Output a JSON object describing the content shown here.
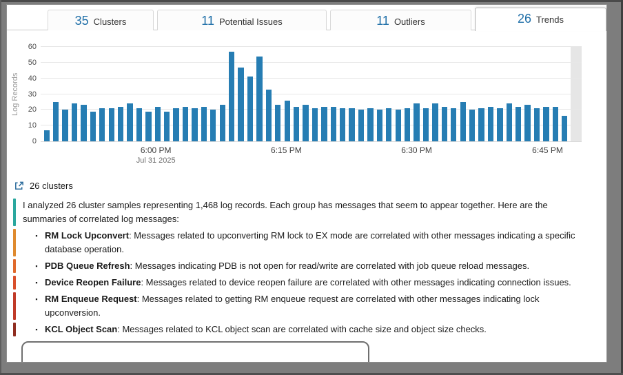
{
  "colors": {
    "accent_blue": "#1f6fa8",
    "bar_blue": "#267db3"
  },
  "tabs": [
    {
      "count": "35",
      "label": "Clusters",
      "active": false
    },
    {
      "count": "11",
      "label": "Potential Issues",
      "active": false
    },
    {
      "count": "11",
      "label": "Outliers",
      "active": false
    },
    {
      "count": "26",
      "label": "Trends",
      "active": true
    }
  ],
  "chart_data": {
    "type": "bar",
    "title": "",
    "xlabel": "",
    "ylabel": "Log Records",
    "ylim": [
      0,
      60
    ],
    "y_ticks": [
      0,
      10,
      20,
      30,
      40,
      50,
      60
    ],
    "grid": true,
    "x_ticks": [
      {
        "label": "6:00 PM",
        "sublabel": "Jul 31 2025",
        "pct": 21.3
      },
      {
        "label": "6:15 PM",
        "sublabel": "",
        "pct": 45.4
      },
      {
        "label": "6:30 PM",
        "sublabel": "",
        "pct": 69.5
      },
      {
        "label": "6:45 PM",
        "sublabel": "",
        "pct": 93.7
      }
    ],
    "values": [
      7,
      25,
      20,
      24,
      23,
      19,
      21,
      21,
      22,
      24,
      21,
      19,
      22,
      19,
      21,
      22,
      21,
      22,
      20,
      23,
      57,
      47,
      41,
      54,
      33,
      23,
      26,
      22,
      23,
      21,
      22,
      22,
      21,
      21,
      20,
      21,
      20,
      21,
      20,
      21,
      24,
      21,
      24,
      22,
      21,
      25,
      20,
      21,
      22,
      21,
      24,
      22,
      23,
      21,
      22,
      22,
      16
    ]
  },
  "clusters_summary": {
    "icon": "clusters-icon",
    "text": "26 clusters"
  },
  "summary": {
    "intro": "I analyzed 26 cluster samples representing 1,468 log records. Each group has messages that seem to appear together. Here are the summaries of correlated log messages:",
    "intro_color": "#2aa79e",
    "bullets": [
      {
        "title": "RM Lock Upconvert",
        "text": "Messages related to upconverting RM lock to EX mode are correlated with other messages indicating a specific database operation.",
        "color": "#df8a2e"
      },
      {
        "title": "PDB Queue Refresh",
        "text": "Messages indicating PDB is not open for read/write are correlated with job queue reload messages.",
        "color": "#e06a2c"
      },
      {
        "title": "Device Reopen Failure",
        "text": "Messages related to device reopen failure are correlated with other messages indicating connection issues.",
        "color": "#d94f2b"
      },
      {
        "title": "RM Enqueue Request",
        "text": "Messages related to getting RM enqueue request are correlated with other messages indicating lock upconversion.",
        "color": "#c03a28"
      },
      {
        "title": "KCL Object Scan",
        "text": "Messages related to KCL object scan are correlated with cache size and object size checks.",
        "color": "#8f2d20"
      }
    ]
  }
}
